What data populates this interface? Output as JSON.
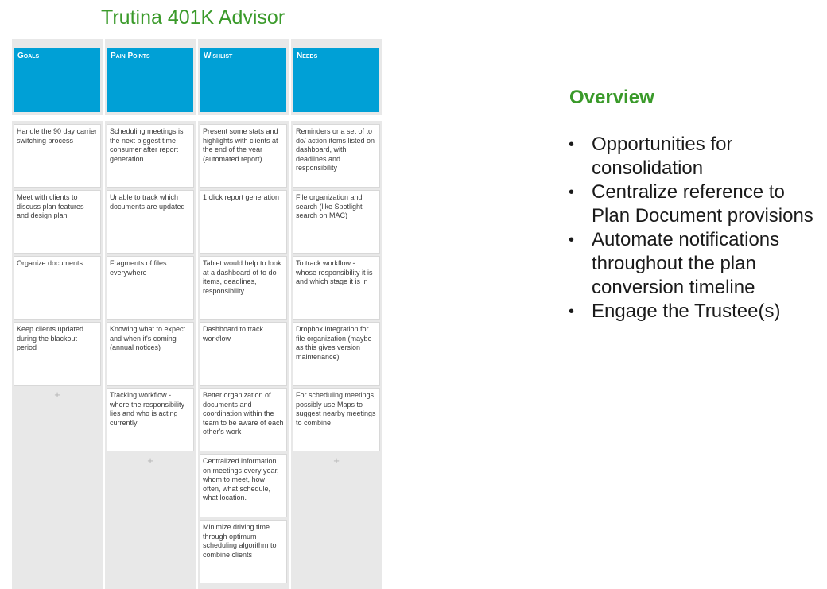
{
  "page": {
    "title": "Trutina 401K Advisor"
  },
  "board": {
    "add_symbol": "+",
    "columns": [
      {
        "header": "Goals",
        "cards": [
          "Handle the 90 day carrier switching process",
          "Meet with clients to discuss plan features and design plan",
          "Organize documents",
          "Keep clients updated during the blackout period"
        ]
      },
      {
        "header": "Pain Points",
        "cards": [
          "Scheduling meetings is the next biggest time consumer after report generation",
          "Unable to track which documents are updated",
          "Fragments of files everywhere",
          "Knowing what to expect and when it's coming (annual notices)",
          "Tracking workflow - where the responsibility lies and who is acting currently"
        ]
      },
      {
        "header": "Wishlist",
        "cards": [
          "Present some stats and highlights with clients at the end of the year (automated report)",
          "1 click report generation",
          "Tablet would help to look at a dashboard of to do items, deadlines, responsibility",
          "Dashboard to track workflow",
          "Better organization of documents and coordination within the team to be aware of each other's work",
          "Centralized information on meetings every year, whom to meet, how often, what schedule, what location.",
          "Minimize driving time through optimum scheduling algorithm to combine clients"
        ]
      },
      {
        "header": "Needs",
        "cards": [
          "Reminders or a set of to do/ action items listed on dashboard, with deadlines and responsibility",
          "File organization and search (like Spotlight search on MAC)",
          "To track workflow - whose responsibility it is and which stage it is in",
          "Dropbox integration for file organization (maybe as this gives version maintenance)",
          "For scheduling meetings, possibly use Maps to suggest nearby meetings to combine"
        ]
      }
    ]
  },
  "overview": {
    "title": "Overview",
    "bullet_char": "•",
    "items": [
      "Opportunities for consolidation",
      "Centralize reference to Plan Document provisions",
      "Automate notifications throughout the plan conversion timeline",
      "Engage the Trustee(s)"
    ]
  }
}
